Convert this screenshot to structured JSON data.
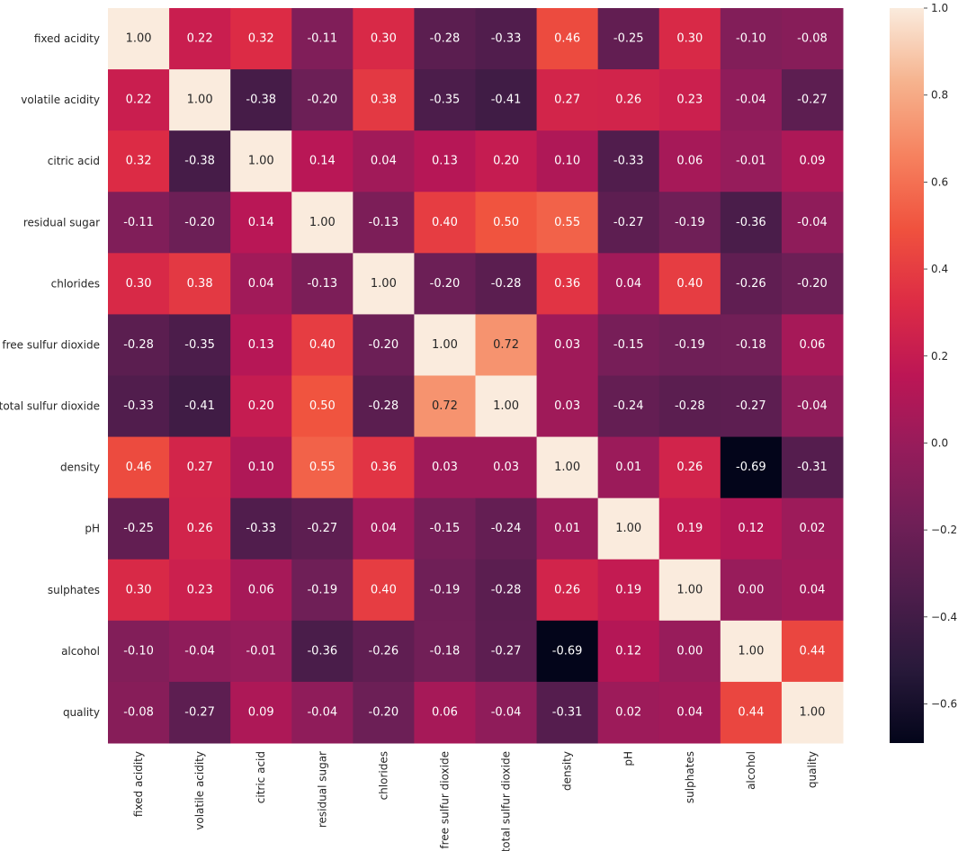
{
  "chart_data": {
    "type": "heatmap",
    "title": "",
    "xlabel": "",
    "ylabel": "",
    "labels": [
      "fixed acidity",
      "volatile acidity",
      "citric acid",
      "residual sugar",
      "chlorides",
      "free sulfur dioxide",
      "total sulfur dioxide",
      "density",
      "pH",
      "sulphates",
      "alcohol",
      "quality"
    ],
    "values": [
      [
        1.0,
        0.22,
        0.32,
        -0.11,
        0.3,
        -0.28,
        -0.33,
        0.46,
        -0.25,
        0.3,
        -0.1,
        -0.08
      ],
      [
        0.22,
        1.0,
        -0.38,
        -0.2,
        0.38,
        -0.35,
        -0.41,
        0.27,
        0.26,
        0.23,
        -0.04,
        -0.27
      ],
      [
        0.32,
        -0.38,
        1.0,
        0.14,
        0.04,
        0.13,
        0.2,
        0.1,
        -0.33,
        0.06,
        -0.01,
        0.09
      ],
      [
        -0.11,
        -0.2,
        0.14,
        1.0,
        -0.13,
        0.4,
        0.5,
        0.55,
        -0.27,
        -0.19,
        -0.36,
        -0.04
      ],
      [
        0.3,
        0.38,
        0.04,
        -0.13,
        1.0,
        -0.2,
        -0.28,
        0.36,
        0.04,
        0.4,
        -0.26,
        -0.2
      ],
      [
        -0.28,
        -0.35,
        0.13,
        0.4,
        -0.2,
        1.0,
        0.72,
        0.03,
        -0.15,
        -0.19,
        -0.18,
        0.06
      ],
      [
        -0.33,
        -0.41,
        0.2,
        0.5,
        -0.28,
        0.72,
        1.0,
        0.03,
        -0.24,
        -0.28,
        -0.27,
        -0.04
      ],
      [
        0.46,
        0.27,
        0.1,
        0.55,
        0.36,
        0.03,
        0.03,
        1.0,
        0.01,
        0.26,
        -0.69,
        -0.31
      ],
      [
        -0.25,
        0.26,
        -0.33,
        -0.27,
        0.04,
        -0.15,
        -0.24,
        0.01,
        1.0,
        0.19,
        0.12,
        0.02
      ],
      [
        0.3,
        0.23,
        0.06,
        -0.19,
        0.4,
        -0.19,
        -0.28,
        0.26,
        0.19,
        1.0,
        -0.0,
        0.04
      ],
      [
        -0.1,
        -0.04,
        -0.01,
        -0.36,
        -0.26,
        -0.18,
        -0.27,
        -0.69,
        0.12,
        -0.0,
        1.0,
        0.44
      ],
      [
        -0.08,
        -0.27,
        0.09,
        -0.04,
        -0.2,
        0.06,
        -0.04,
        -0.31,
        0.02,
        0.04,
        0.44,
        1.0
      ]
    ],
    "value_format": "2 decimals",
    "colormap": "rocket",
    "colorbar": {
      "range": [
        -0.69,
        1.0
      ],
      "ticks": [
        -0.6,
        -0.4,
        -0.2,
        0.0,
        0.2,
        0.4,
        0.6,
        0.8,
        1.0
      ],
      "tick_labels": [
        "−0.6",
        "−0.4",
        "−0.2",
        "0.0",
        "0.2",
        "0.4",
        "0.6",
        "0.8",
        "1.0"
      ],
      "placement": "right"
    },
    "grid": false,
    "x_tick_rotation_deg": 90
  }
}
